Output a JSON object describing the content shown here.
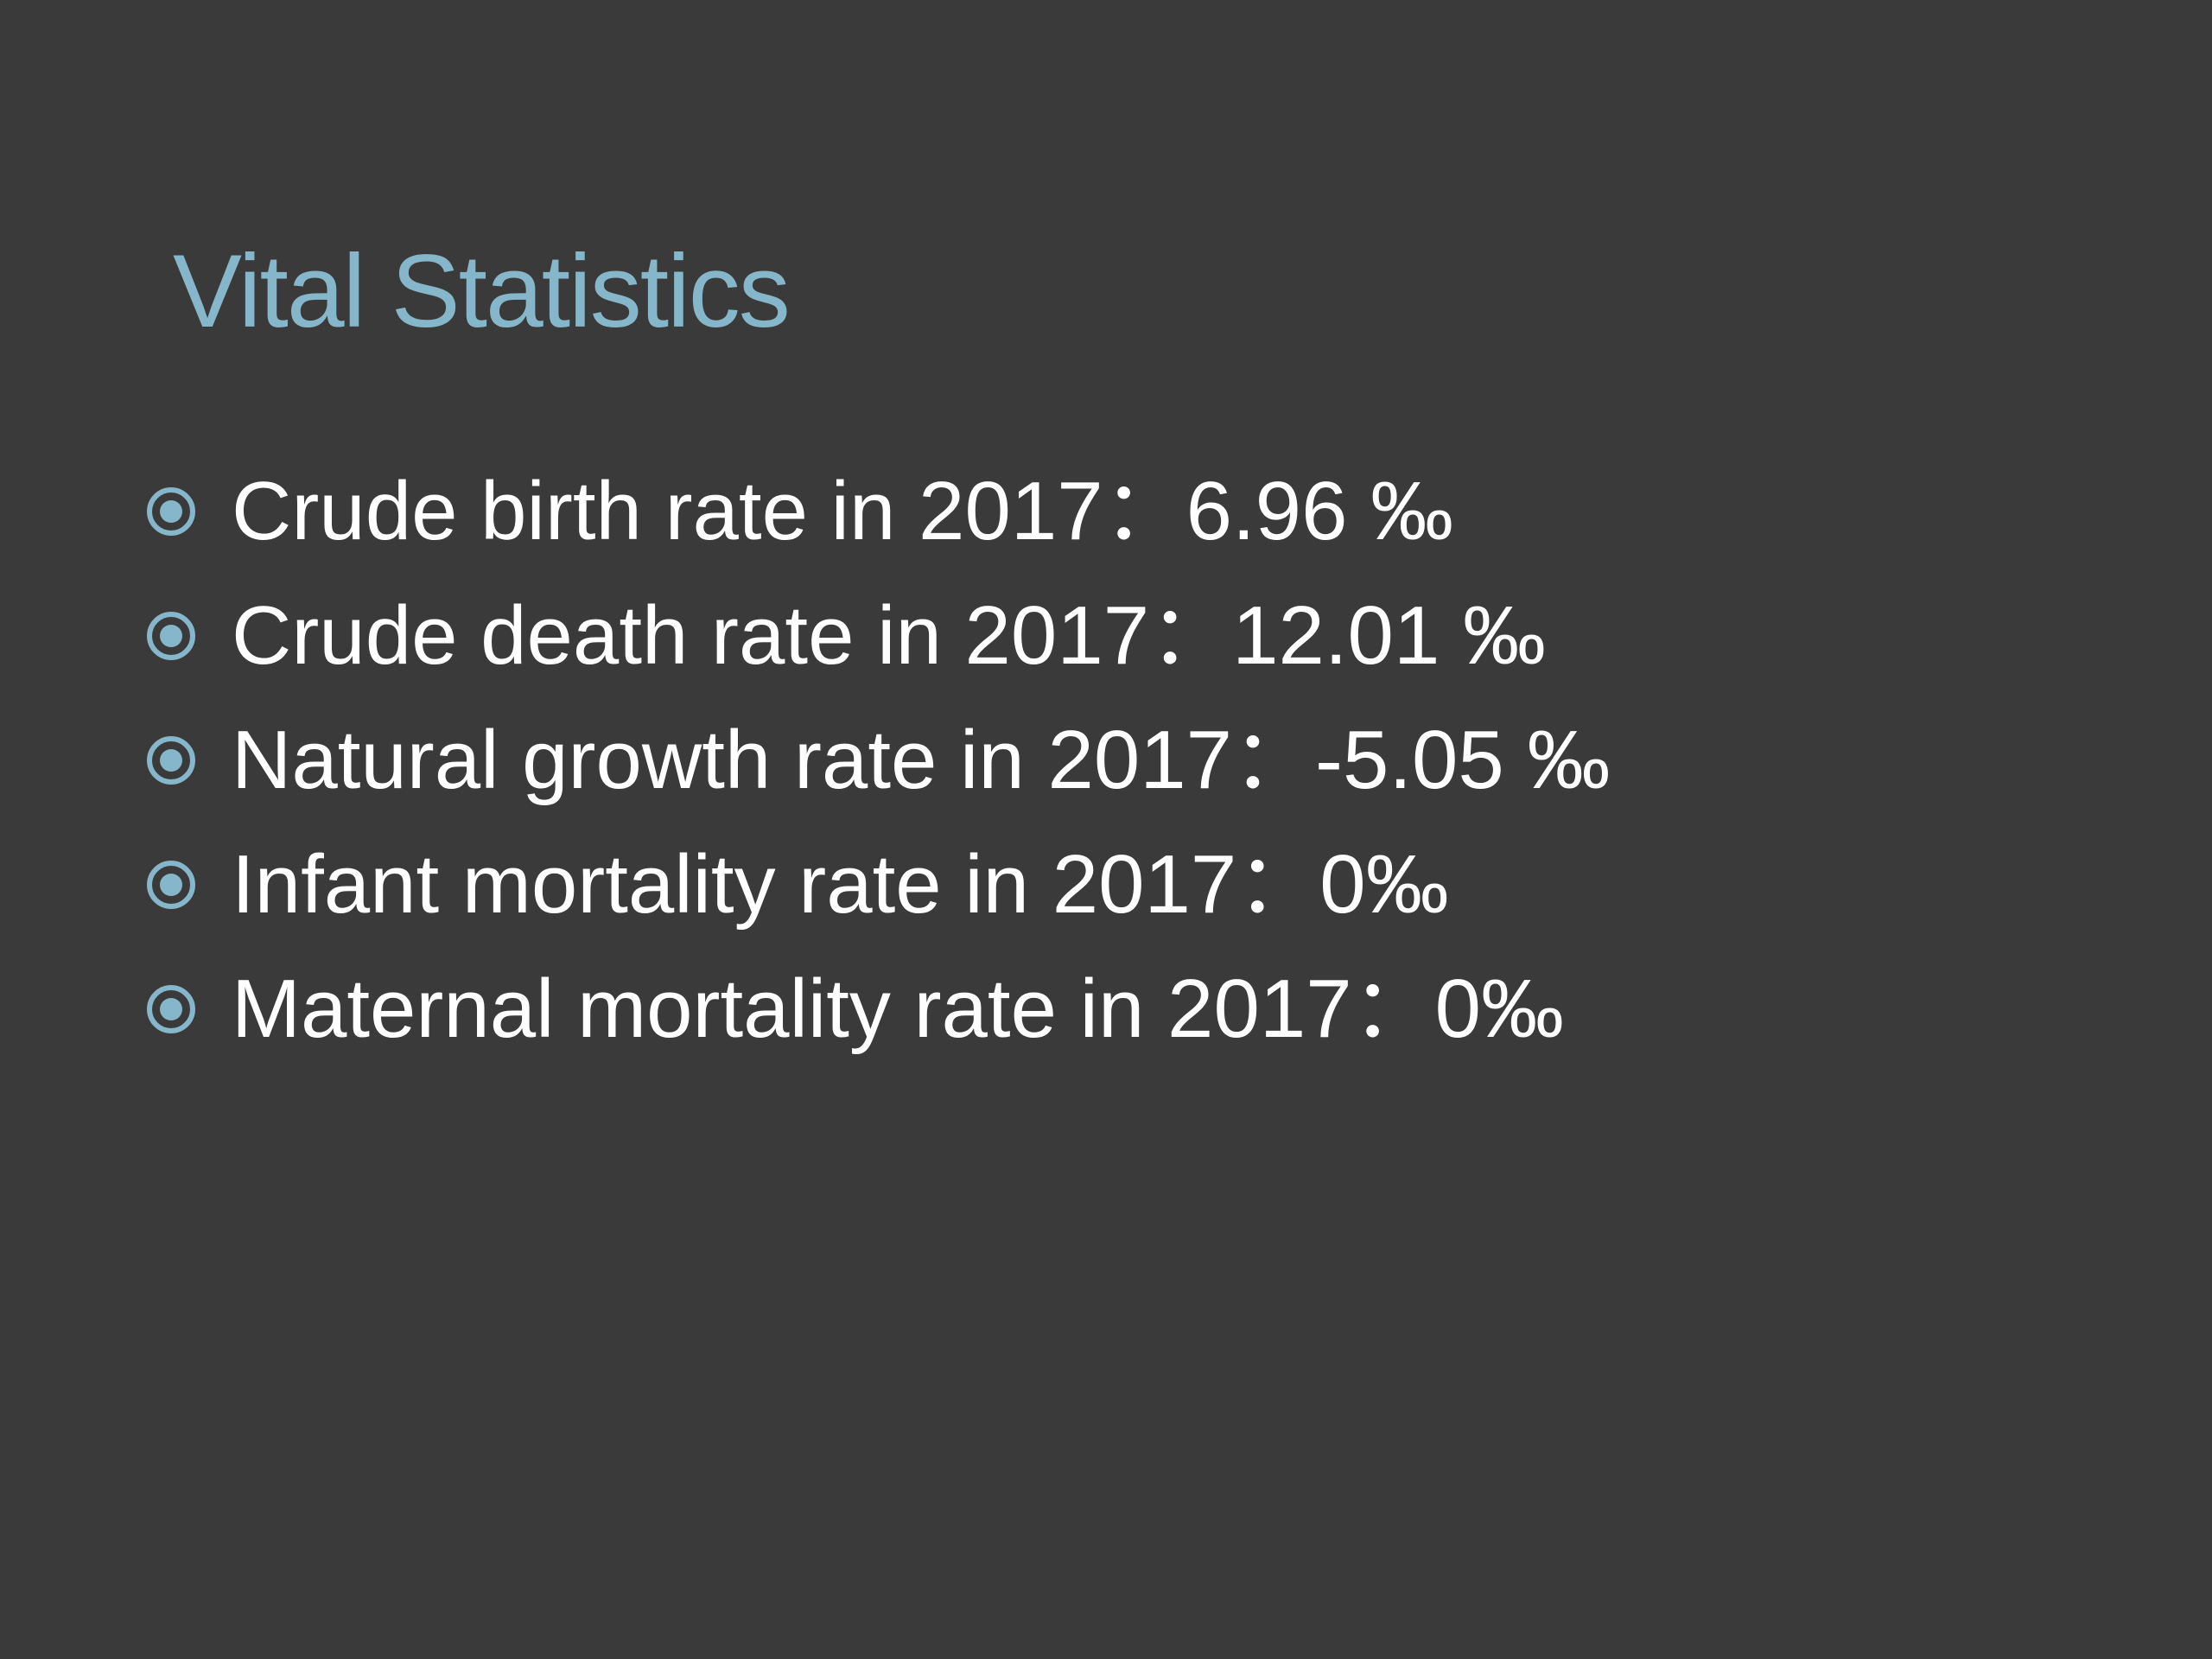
{
  "slide": {
    "title": "Vital Statistics",
    "bullets": [
      {
        "text": "Crude birth rate in 2017：6.96 ‰",
        "icon": "circle-bullet-icon"
      },
      {
        "text": "Crude death rate in 2017：12.01 ‰",
        "icon": "circle-bullet-icon"
      },
      {
        "text": "Natural growth rate in 2017：-5.05 ‰",
        "icon": "circle-bullet-icon"
      },
      {
        "text": "Infant mortality rate in 2017：0‰",
        "icon": "circle-bullet-icon"
      },
      {
        "text": "Maternal mortality rate in 2017：0‰",
        "icon": "circle-bullet-icon"
      }
    ]
  },
  "colors": {
    "background": "#3a3a3a",
    "title": "#86b6c9",
    "bullet_text": "#ffffff",
    "bullet_icon": "#86b6c9"
  }
}
